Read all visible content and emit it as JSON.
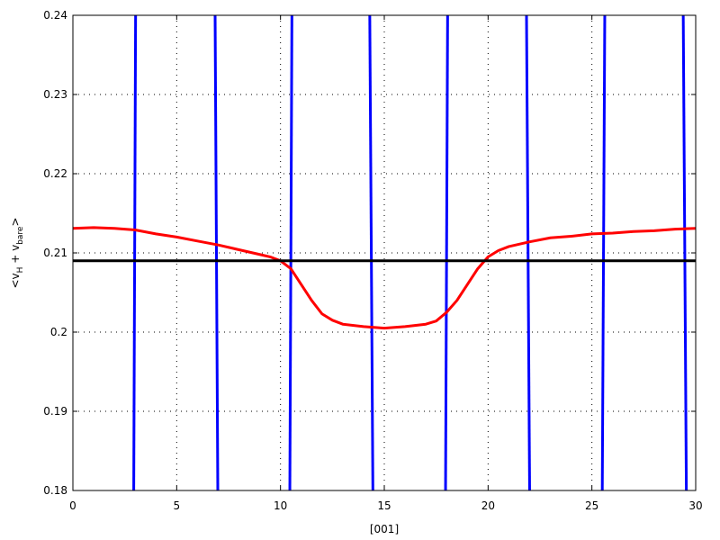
{
  "chart_data": {
    "type": "line",
    "xlabel": "[001]",
    "ylabel": {
      "prefix": "<v",
      "sub1": "H",
      "middle": " + v",
      "sub2": "bare",
      "suffix": ">"
    },
    "xlim": [
      0,
      30
    ],
    "ylim": [
      0.18,
      0.24
    ],
    "xticks": [
      0,
      5,
      10,
      15,
      20,
      25,
      30
    ],
    "yticks": [
      0.18,
      0.19,
      0.2,
      0.21,
      0.22,
      0.23,
      0.24
    ],
    "xtick_labels": [
      "0",
      "5",
      "10",
      "15",
      "20",
      "25",
      "30"
    ],
    "ytick_labels": [
      "0.18",
      "0.19",
      "0.2",
      "0.21",
      "0.22",
      "0.23",
      "0.24"
    ],
    "grid": true,
    "series": [
      {
        "color": "#0000ff",
        "style": "steep-crossings",
        "segments": [
          {
            "x": [
              2.93,
              3.02
            ],
            "y": [
              0.18,
              0.24
            ]
          },
          {
            "x": [
              6.85,
              6.98
            ],
            "y": [
              0.24,
              0.18
            ]
          },
          {
            "x": [
              10.45,
              10.55
            ],
            "y": [
              0.18,
              0.24
            ]
          },
          {
            "x": [
              14.3,
              14.45
            ],
            "y": [
              0.24,
              0.18
            ]
          },
          {
            "x": [
              17.95,
              18.05
            ],
            "y": [
              0.18,
              0.24
            ]
          },
          {
            "x": [
              21.85,
              22.0
            ],
            "y": [
              0.24,
              0.18
            ]
          },
          {
            "x": [
              25.5,
              25.62
            ],
            "y": [
              0.18,
              0.24
            ]
          },
          {
            "x": [
              29.4,
              29.55
            ],
            "y": [
              0.24,
              0.18
            ]
          }
        ]
      },
      {
        "color": "#ff0000",
        "x": [
          0,
          1,
          2,
          3,
          4,
          5,
          6,
          7,
          8,
          9,
          9.5,
          10,
          10.5,
          11,
          11.5,
          12,
          12.5,
          13,
          14,
          15,
          16,
          17,
          17.5,
          18,
          18.5,
          19,
          19.5,
          20,
          20.5,
          21,
          22,
          23,
          24,
          25,
          26,
          27,
          28,
          29,
          30
        ],
        "y": [
          0.2131,
          0.2132,
          0.2131,
          0.2129,
          0.2124,
          0.212,
          0.2115,
          0.211,
          0.2104,
          0.2098,
          0.2095,
          0.209,
          0.208,
          0.206,
          0.204,
          0.2023,
          0.2015,
          0.201,
          0.2007,
          0.2005,
          0.2007,
          0.201,
          0.2014,
          0.2025,
          0.204,
          0.206,
          0.208,
          0.2095,
          0.2103,
          0.2108,
          0.2114,
          0.2119,
          0.2121,
          0.2124,
          0.2125,
          0.2127,
          0.2128,
          0.213,
          0.2131
        ]
      },
      {
        "color": "#000000",
        "x": [
          0,
          30
        ],
        "y": [
          0.209,
          0.209
        ]
      }
    ]
  }
}
